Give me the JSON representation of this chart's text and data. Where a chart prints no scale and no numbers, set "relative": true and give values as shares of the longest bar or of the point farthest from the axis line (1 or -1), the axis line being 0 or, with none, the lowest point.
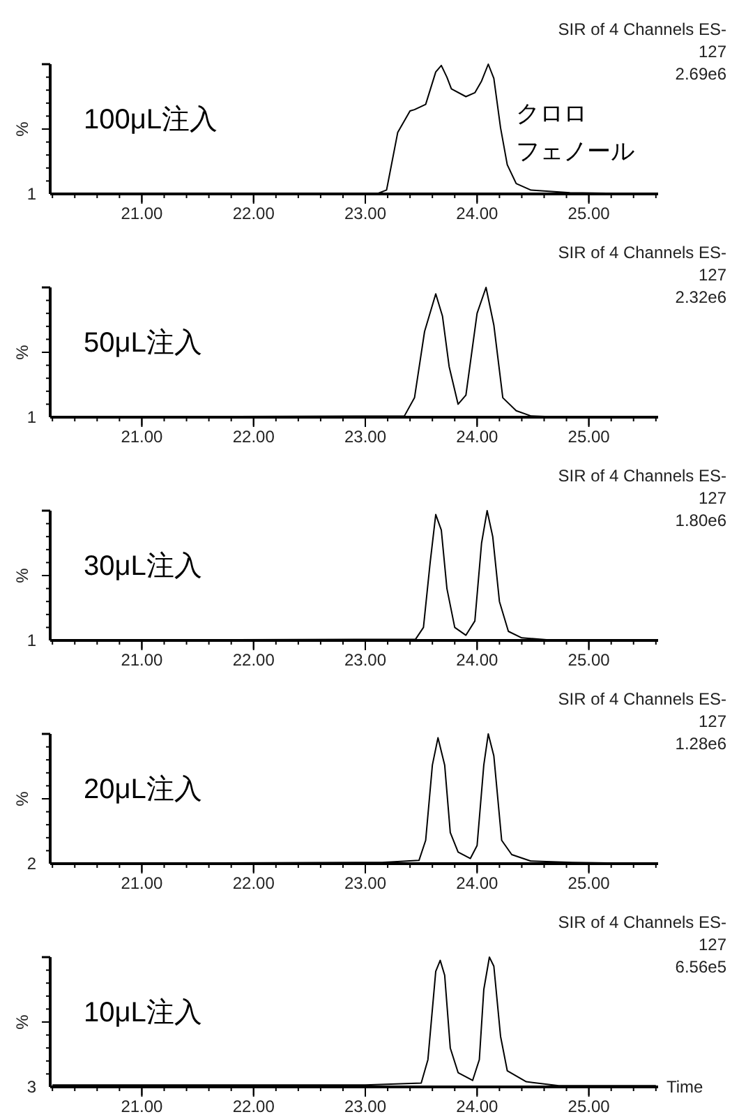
{
  "chart_data": [
    {
      "type": "line",
      "relative": true,
      "title": "100μL注入",
      "ylabel": "%",
      "xlim": [
        20.18,
        25.62
      ],
      "xticks": [
        {
          "value": 21,
          "label": "21.00"
        },
        {
          "value": 22,
          "label": "22.00"
        },
        {
          "value": 23,
          "label": "23.00"
        },
        {
          "value": 24,
          "label": "24.00"
        },
        {
          "value": 25,
          "label": "25.00"
        }
      ],
      "annotations": [
        "SIR of 4 Channels ES-",
        "127",
        "2.69e6",
        "1",
        "クロロ",
        "フェノール"
      ],
      "series": [
        {
          "color": "#000000",
          "x": [
            20.2,
            23.1,
            23.19,
            23.29,
            23.4,
            23.44,
            23.54,
            23.63,
            23.68,
            23.73,
            23.77,
            23.9,
            23.98,
            24.04,
            24.1,
            24.15,
            24.21,
            24.27,
            24.35,
            24.48,
            24.83,
            25.6
          ],
          "values": [
            0,
            0,
            0.03,
            0.475,
            0.64,
            0.65,
            0.69,
            0.94,
            0.99,
            0.9,
            0.81,
            0.75,
            0.78,
            0.87,
            1,
            0.89,
            0.51,
            0.225,
            0.08,
            0.03,
            0.01,
            0
          ]
        }
      ]
    },
    {
      "type": "line",
      "relative": true,
      "title": "50μL注入",
      "ylabel": "%",
      "xlim": [
        20.18,
        25.62
      ],
      "xticks": [
        {
          "value": 21,
          "label": "21.00"
        },
        {
          "value": 22,
          "label": "22.00"
        },
        {
          "value": 23,
          "label": "23.00"
        },
        {
          "value": 24,
          "label": "24.00"
        },
        {
          "value": 25,
          "label": "25.00"
        }
      ],
      "annotations": [
        "SIR of 4 Channels ES-",
        "127",
        "2.32e6",
        "1"
      ],
      "series": [
        {
          "color": "#000000",
          "x": [
            20.2,
            23.35,
            23.44,
            23.53,
            23.63,
            23.69,
            23.75,
            23.83,
            23.9,
            24.0,
            24.08,
            24.15,
            24.23,
            24.35,
            24.48,
            24.77,
            25.6
          ],
          "values": [
            0,
            0.01,
            0.15,
            0.66,
            0.95,
            0.78,
            0.39,
            0.1,
            0.17,
            0.8,
            1,
            0.71,
            0.15,
            0.05,
            0.01,
            0,
            0
          ]
        }
      ]
    },
    {
      "type": "line",
      "relative": true,
      "title": "30μL注入",
      "ylabel": "%",
      "xlim": [
        20.18,
        25.62
      ],
      "xticks": [
        {
          "value": 21,
          "label": "21.00"
        },
        {
          "value": 22,
          "label": "22.00"
        },
        {
          "value": 23,
          "label": "23.00"
        },
        {
          "value": 24,
          "label": "24.00"
        },
        {
          "value": 25,
          "label": "25.00"
        }
      ],
      "annotations": [
        "SIR of 4 Channels ES-",
        "127",
        "1.80e6",
        "1"
      ],
      "series": [
        {
          "color": "#000000",
          "x": [
            20.2,
            23.45,
            23.52,
            23.58,
            23.63,
            23.68,
            23.73,
            23.8,
            23.9,
            23.98,
            24.04,
            24.09,
            24.14,
            24.2,
            24.28,
            24.4,
            24.7,
            25.6
          ],
          "values": [
            0,
            0.01,
            0.1,
            0.6,
            0.97,
            0.85,
            0.4,
            0.1,
            0.04,
            0.15,
            0.75,
            1,
            0.8,
            0.3,
            0.07,
            0.02,
            0,
            0
          ]
        }
      ]
    },
    {
      "type": "line",
      "relative": true,
      "title": "20μL注入",
      "ylabel": "%",
      "xlim": [
        20.18,
        25.62
      ],
      "xticks": [
        {
          "value": 21,
          "label": "21.00"
        },
        {
          "value": 22,
          "label": "22.00"
        },
        {
          "value": 23,
          "label": "23.00"
        },
        {
          "value": 24,
          "label": "24.00"
        },
        {
          "value": 25,
          "label": "25.00"
        }
      ],
      "annotations": [
        "SIR of 4 Channels ES-",
        "127",
        "1.28e6",
        "2"
      ],
      "series": [
        {
          "color": "#000000",
          "x": [
            20.2,
            23.15,
            23.48,
            23.54,
            23.6,
            23.65,
            23.71,
            23.76,
            23.83,
            23.94,
            24.0,
            24.06,
            24.1,
            24.15,
            24.22,
            24.31,
            24.48,
            24.85,
            25.6
          ],
          "values": [
            0,
            0.01,
            0.025,
            0.18,
            0.76,
            0.97,
            0.76,
            0.24,
            0.09,
            0.04,
            0.14,
            0.76,
            1,
            0.83,
            0.18,
            0.07,
            0.02,
            0.01,
            0
          ]
        }
      ]
    },
    {
      "type": "line",
      "relative": true,
      "title": "10μL注入",
      "ylabel": "%",
      "xlabel": "Time",
      "xlim": [
        20.18,
        25.62
      ],
      "xticks": [
        {
          "value": 21,
          "label": "21.00"
        },
        {
          "value": 22,
          "label": "22.00"
        },
        {
          "value": 23,
          "label": "23.00"
        },
        {
          "value": 24,
          "label": "24.00"
        },
        {
          "value": 25,
          "label": "25.00"
        }
      ],
      "annotations": [
        "SIR of 4 Channels ES-",
        "127",
        "6.56e5",
        "3"
      ],
      "series": [
        {
          "color": "#000000",
          "x": [
            20.2,
            23.0,
            23.5,
            23.56,
            23.63,
            23.67,
            23.71,
            23.76,
            23.83,
            23.96,
            24.02,
            24.06,
            24.11,
            24.15,
            24.21,
            24.27,
            24.44,
            24.73,
            25.6
          ],
          "values": [
            0.015,
            0.015,
            0.03,
            0.21,
            0.89,
            0.975,
            0.86,
            0.3,
            0.11,
            0.05,
            0.21,
            0.75,
            1,
            0.93,
            0.39,
            0.125,
            0.04,
            0.01,
            0.01
          ]
        }
      ]
    }
  ]
}
